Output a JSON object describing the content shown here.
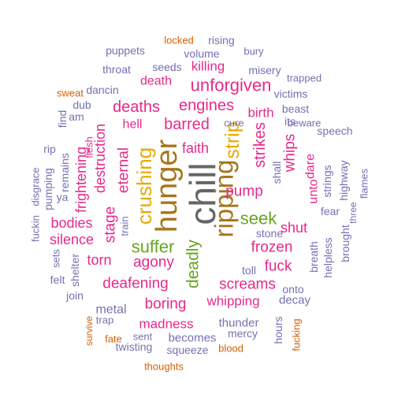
{
  "colors": {
    "gray": "#666666",
    "olive": "#a6761d",
    "gold": "#e6ab02",
    "green": "#66a61e",
    "magenta": "#e7298a",
    "orange": "#d95f02",
    "purple": "#7570b3"
  },
  "words": [
    {
      "text": "chill",
      "color": "gray"
    },
    {
      "text": "hunger",
      "color": "olive"
    },
    {
      "text": "ripping",
      "color": "olive"
    },
    {
      "text": "strip",
      "color": "gold"
    },
    {
      "text": "crushing",
      "color": "gold"
    },
    {
      "text": "seek",
      "color": "green"
    },
    {
      "text": "suffer",
      "color": "green"
    },
    {
      "text": "deadly",
      "color": "green"
    },
    {
      "text": "unforgiven",
      "color": "magenta"
    },
    {
      "text": "engines",
      "color": "magenta"
    },
    {
      "text": "deaths",
      "color": "magenta"
    },
    {
      "text": "barred",
      "color": "magenta"
    },
    {
      "text": "faith",
      "color": "magenta"
    },
    {
      "text": "pump",
      "color": "magenta"
    },
    {
      "text": "frozen",
      "color": "magenta"
    },
    {
      "text": "strikes",
      "color": "magenta"
    },
    {
      "text": "whips",
      "color": "magenta"
    },
    {
      "text": "birth",
      "color": "magenta"
    },
    {
      "text": "agony",
      "color": "magenta"
    },
    {
      "text": "deafening",
      "color": "magenta"
    },
    {
      "text": "screams",
      "color": "magenta"
    },
    {
      "text": "boring",
      "color": "magenta"
    },
    {
      "text": "whipping",
      "color": "magenta"
    },
    {
      "text": "fuck",
      "color": "magenta"
    },
    {
      "text": "shut",
      "color": "magenta"
    },
    {
      "text": "stage",
      "color": "magenta"
    },
    {
      "text": "eternal",
      "color": "magenta"
    },
    {
      "text": "destruction",
      "color": "magenta"
    },
    {
      "text": "frightening",
      "color": "magenta"
    },
    {
      "text": "bodies",
      "color": "magenta"
    },
    {
      "text": "silence",
      "color": "magenta"
    },
    {
      "text": "torn",
      "color": "magenta"
    },
    {
      "text": "madness",
      "color": "magenta"
    },
    {
      "text": "killing",
      "color": "magenta"
    },
    {
      "text": "death",
      "color": "magenta"
    },
    {
      "text": "hell",
      "color": "magenta"
    },
    {
      "text": "unto",
      "color": "magenta"
    },
    {
      "text": "dare",
      "color": "magenta"
    },
    {
      "text": "flesh",
      "color": "magenta"
    },
    {
      "text": "puppets",
      "color": "purple"
    },
    {
      "text": "seeds",
      "color": "purple"
    },
    {
      "text": "volume",
      "color": "purple"
    },
    {
      "text": "misery",
      "color": "purple"
    },
    {
      "text": "rising",
      "color": "purple"
    },
    {
      "text": "bury",
      "color": "purple"
    },
    {
      "text": "trapped",
      "color": "purple"
    },
    {
      "text": "throat",
      "color": "purple"
    },
    {
      "text": "dancin",
      "color": "purple"
    },
    {
      "text": "victims",
      "color": "purple"
    },
    {
      "text": "beast",
      "color": "purple"
    },
    {
      "text": "beware",
      "color": "purple"
    },
    {
      "text": "speech",
      "color": "purple"
    },
    {
      "text": "its",
      "color": "purple"
    },
    {
      "text": "cure",
      "color": "purple"
    },
    {
      "text": "shall",
      "color": "purple"
    },
    {
      "text": "dub",
      "color": "purple"
    },
    {
      "text": "am",
      "color": "purple"
    },
    {
      "text": "find",
      "color": "purple"
    },
    {
      "text": "rip",
      "color": "purple"
    },
    {
      "text": "remains",
      "color": "purple"
    },
    {
      "text": "disgrace",
      "color": "purple"
    },
    {
      "text": "pumping",
      "color": "purple"
    },
    {
      "text": "ya",
      "color": "purple"
    },
    {
      "text": "fuckin",
      "color": "purple"
    },
    {
      "text": "sets",
      "color": "purple"
    },
    {
      "text": "felt",
      "color": "purple"
    },
    {
      "text": "shelter",
      "color": "purple"
    },
    {
      "text": "join",
      "color": "purple"
    },
    {
      "text": "stone",
      "color": "purple"
    },
    {
      "text": "toll",
      "color": "purple"
    },
    {
      "text": "onto",
      "color": "purple"
    },
    {
      "text": "decay",
      "color": "purple"
    },
    {
      "text": "metal",
      "color": "purple"
    },
    {
      "text": "trap",
      "color": "purple"
    },
    {
      "text": "thunder",
      "color": "purple"
    },
    {
      "text": "mercy",
      "color": "purple"
    },
    {
      "text": "hours",
      "color": "purple"
    },
    {
      "text": "sent",
      "color": "purple"
    },
    {
      "text": "twisting",
      "color": "purple"
    },
    {
      "text": "becomes",
      "color": "purple"
    },
    {
      "text": "squeeze",
      "color": "purple"
    },
    {
      "text": "strings",
      "color": "purple"
    },
    {
      "text": "highway",
      "color": "purple"
    },
    {
      "text": "flames",
      "color": "purple"
    },
    {
      "text": "three",
      "color": "purple"
    },
    {
      "text": "fear",
      "color": "purple"
    },
    {
      "text": "brought",
      "color": "purple"
    },
    {
      "text": "breath",
      "color": "purple"
    },
    {
      "text": "helpless",
      "color": "purple"
    },
    {
      "text": "train",
      "color": "purple"
    },
    {
      "text": "locked",
      "color": "orange"
    },
    {
      "text": "sweat",
      "color": "orange"
    },
    {
      "text": "survive",
      "color": "orange"
    },
    {
      "text": "fate",
      "color": "orange"
    },
    {
      "text": "blood",
      "color": "orange"
    },
    {
      "text": "fucking",
      "color": "orange"
    },
    {
      "text": "thoughts",
      "color": "orange"
    }
  ]
}
